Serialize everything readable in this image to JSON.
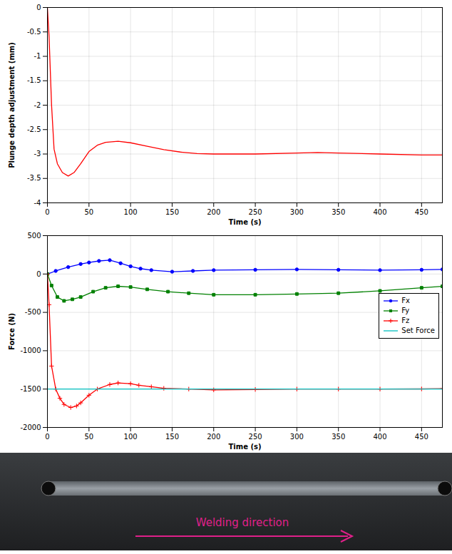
{
  "chart_data": [
    {
      "type": "line",
      "xlabel": "Time (s)",
      "ylabel": "Plunge depth adjustment (mm)",
      "xlim": [
        0,
        475
      ],
      "xticks": [
        0,
        50,
        100,
        150,
        200,
        250,
        300,
        350,
        400,
        450
      ],
      "ylim": [
        -4,
        0
      ],
      "yticks": [
        -4,
        -3.5,
        -3,
        -2.5,
        -2,
        -1.5,
        -1,
        -0.5,
        0
      ],
      "grid": true,
      "series": [
        {
          "color": "#ff0000",
          "line_style": "solid",
          "x": [
            0,
            2,
            5,
            8,
            12,
            18,
            25,
            32,
            40,
            50,
            60,
            70,
            85,
            100,
            120,
            140,
            160,
            180,
            200,
            250,
            300,
            325,
            350,
            400,
            450,
            475
          ],
          "values": [
            0,
            -0.6,
            -2.0,
            -2.9,
            -3.2,
            -3.38,
            -3.45,
            -3.38,
            -3.2,
            -2.95,
            -2.82,
            -2.76,
            -2.74,
            -2.77,
            -2.84,
            -2.91,
            -2.96,
            -2.99,
            -3.0,
            -3.0,
            -2.98,
            -2.97,
            -2.98,
            -3.0,
            -3.02,
            -3.02
          ]
        }
      ]
    },
    {
      "type": "line",
      "xlabel": "Time (s)",
      "ylabel": "Force (N)",
      "xlim": [
        0,
        475
      ],
      "xticks": [
        0,
        50,
        100,
        150,
        200,
        250,
        300,
        350,
        400,
        450
      ],
      "ylim": [
        -2000,
        500
      ],
      "yticks": [
        -2000,
        -1500,
        -1000,
        -500,
        0,
        500
      ],
      "grid": true,
      "legend": "right",
      "series": [
        {
          "name": "Fx",
          "color": "#0000ff",
          "marker": "circle",
          "line_style": "solid",
          "x": [
            0,
            10,
            25,
            40,
            50,
            62,
            75,
            88,
            100,
            112,
            125,
            150,
            175,
            200,
            250,
            300,
            350,
            400,
            450,
            475
          ],
          "values": [
            0,
            40,
            90,
            130,
            150,
            170,
            180,
            140,
            100,
            70,
            50,
            30,
            40,
            50,
            55,
            60,
            55,
            50,
            55,
            60
          ]
        },
        {
          "name": "Fy",
          "color": "#008000",
          "marker": "square",
          "line_style": "solid",
          "x": [
            0,
            5,
            12,
            20,
            30,
            40,
            55,
            70,
            85,
            100,
            120,
            145,
            170,
            200,
            250,
            300,
            350,
            400,
            450,
            475
          ],
          "values": [
            0,
            -150,
            -300,
            -350,
            -330,
            -300,
            -230,
            -180,
            -160,
            -170,
            -200,
            -230,
            -250,
            -270,
            -270,
            -260,
            -250,
            -220,
            -180,
            -160
          ]
        },
        {
          "name": "Fz",
          "color": "#ff0000",
          "marker": "plus",
          "line_style": "solid",
          "x": [
            0,
            2,
            5,
            10,
            15,
            20,
            28,
            35,
            40,
            50,
            60,
            75,
            85,
            100,
            110,
            125,
            140,
            170,
            200,
            250,
            300,
            350,
            400,
            450,
            475
          ],
          "values": [
            0,
            -400,
            -1200,
            -1500,
            -1620,
            -1700,
            -1740,
            -1720,
            -1680,
            -1580,
            -1500,
            -1440,
            -1420,
            -1430,
            -1450,
            -1470,
            -1490,
            -1500,
            -1510,
            -1505,
            -1500,
            -1500,
            -1500,
            -1498,
            -1495
          ]
        },
        {
          "name": "Set Force",
          "color": "#00bfbf",
          "line_style": "solid",
          "x": [
            0,
            475
          ],
          "values": [
            -1500,
            -1500
          ]
        }
      ]
    }
  ],
  "image": {
    "annotation": "Welding direction",
    "color": "#e0208a"
  }
}
